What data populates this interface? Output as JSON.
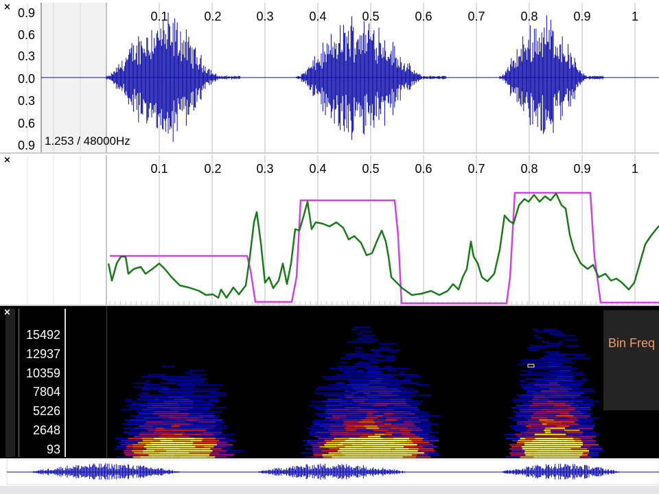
{
  "waveform": {
    "close_label": "×",
    "amplitude_labels": [
      "0.9",
      "0.6",
      "0.3",
      "0.0",
      "0.3",
      "0.6",
      "0.9"
    ],
    "time_labels": [
      "0.1",
      "0.2",
      "0.3",
      "0.4",
      "0.5",
      "0.6",
      "0.7",
      "0.8",
      "0.9",
      "1"
    ],
    "sample_info": "1.253 / 48000Hz",
    "color": "#0a0aa8"
  },
  "pitch": {
    "close_label": "×",
    "time_labels": [
      "0.1",
      "0.2",
      "0.3",
      "0.4",
      "0.5",
      "0.6",
      "0.7",
      "0.8",
      "0.9",
      "1"
    ],
    "pitch_color": "#1a7a1a",
    "voicing_color": "#cc44dd"
  },
  "spectrogram": {
    "close_label": "×",
    "frequency_labels": [
      "15492",
      "12937",
      "10359",
      "7804",
      "5226",
      "2648",
      "93"
    ],
    "info_text": "Bin Freq"
  },
  "overview": {
    "color": "#0a0aa8"
  }
}
